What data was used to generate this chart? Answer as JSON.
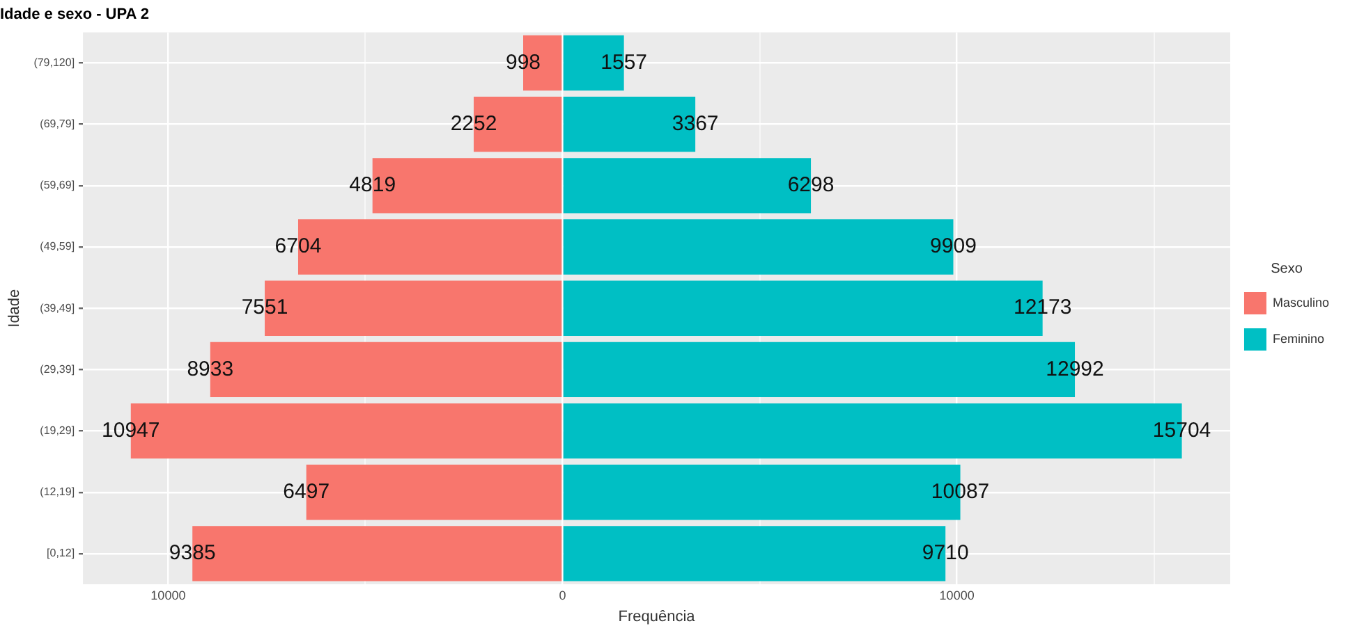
{
  "chart_data": {
    "type": "bar",
    "orientation": "horizontal",
    "title": "Idade e sexo - UPA 2",
    "xlabel": "Frequência",
    "ylabel": "Idade",
    "legend_title": "Sexo",
    "legend": "right",
    "grid": true,
    "categories": [
      "(79,120]",
      "(69,79]",
      "(59,69]",
      "(49,59]",
      "(39,49]",
      "(29,39]",
      "(19,29]",
      "(12,19]",
      "[0,12]"
    ],
    "series": [
      {
        "name": "Masculino",
        "color": "#f8766d",
        "values": [
          998,
          2252,
          4819,
          6704,
          7551,
          8933,
          10947,
          6497,
          9385
        ],
        "base": [
          -998,
          -2252,
          -4819,
          -6704,
          -7551,
          -8933,
          -10947,
          -6497,
          -9385
        ],
        "data_labels": true
      },
      {
        "name": "Feminino",
        "color": "#00bfc4",
        "values": [
          1557,
          3367,
          6298,
          9909,
          12173,
          12992,
          15704,
          10087,
          9710
        ],
        "data_labels": true
      }
    ],
    "xlim": [
      -12160,
      16930
    ],
    "xticks": [
      {
        "value": -10000,
        "label": "10000"
      },
      {
        "value": -5000,
        "label": null
      },
      0,
      {
        "value": 5000,
        "label": null
      },
      10000,
      {
        "value": 15000,
        "label": null
      }
    ]
  }
}
